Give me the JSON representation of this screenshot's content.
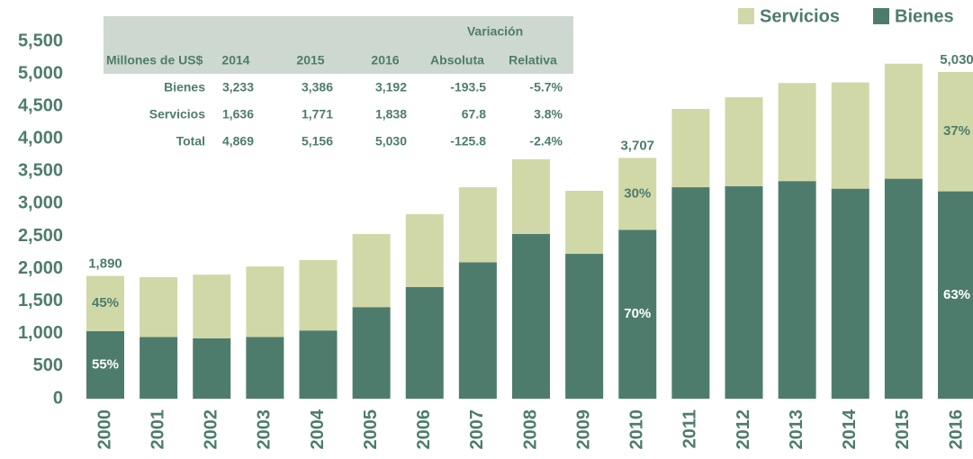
{
  "chart_data": {
    "type": "stacked_bar",
    "categories": [
      "2000",
      "2001",
      "2002",
      "2003",
      "2004",
      "2005",
      "2006",
      "2007",
      "2008",
      "2009",
      "2010",
      "2011",
      "2012",
      "2013",
      "2014",
      "2015",
      "2016"
    ],
    "series": [
      {
        "name": "Bienes",
        "color": "#4e7c6c",
        "values": [
          1040,
          950,
          930,
          950,
          1050,
          1410,
          1720,
          2100,
          2535,
          2230,
          2600,
          3255,
          3270,
          3350,
          3233,
          3386,
          3192
        ],
        "share_labels": [
          {
            "x": "2000",
            "label": "55%"
          },
          {
            "x": "2010",
            "label": "70%"
          },
          {
            "x": "2016",
            "label": "63%"
          }
        ]
      },
      {
        "name": "Servicios",
        "color": "#d0d8a8",
        "values": [
          850,
          920,
          980,
          1085,
          1085,
          1125,
          1120,
          1155,
          1150,
          970,
          1107,
          1205,
          1370,
          1510,
          1636,
          1771,
          1838
        ],
        "share_labels": [
          {
            "x": "2000",
            "label": "45%"
          },
          {
            "x": "2010",
            "label": "30%"
          },
          {
            "x": "2016",
            "label": "37%"
          }
        ]
      }
    ],
    "total_labels": [
      {
        "x": "2000",
        "label": "1,890"
      },
      {
        "x": "2010",
        "label": "3,707"
      },
      {
        "x": "2016",
        "label": "5,030"
      }
    ],
    "ylim": [
      0,
      5500
    ],
    "yticks": [
      0,
      500,
      {
        "value": 1000,
        "label": "1,000"
      },
      {
        "value": 1500,
        "label": "1,500"
      },
      {
        "value": 2000,
        "label": "2,000"
      },
      {
        "value": 2500,
        "label": "2,500"
      },
      {
        "value": 3000,
        "label": "3,000"
      },
      {
        "value": 3500,
        "label": "3,500"
      },
      {
        "value": 4000,
        "label": "4,000"
      },
      {
        "value": 4500,
        "label": "4,500"
      },
      {
        "value": 5000,
        "label": "5,000"
      },
      {
        "value": 5500,
        "label": "5,500"
      }
    ],
    "legend": "top-right",
    "table": {
      "group_header": "Variación",
      "columns": [
        "Millones de US$",
        "2014",
        "2015",
        "2016",
        "Absoluta",
        "Relativa"
      ],
      "rows": [
        [
          "Bienes",
          "3,233",
          "3,386",
          "3,192",
          "-193.5",
          "-5.7%"
        ],
        [
          "Servicios",
          "1,636",
          "1,771",
          "1,838",
          "67.8",
          "3.8%"
        ],
        [
          "Total",
          "4,869",
          "5,156",
          "5,030",
          "-125.8",
          "-2.4%"
        ]
      ]
    }
  }
}
